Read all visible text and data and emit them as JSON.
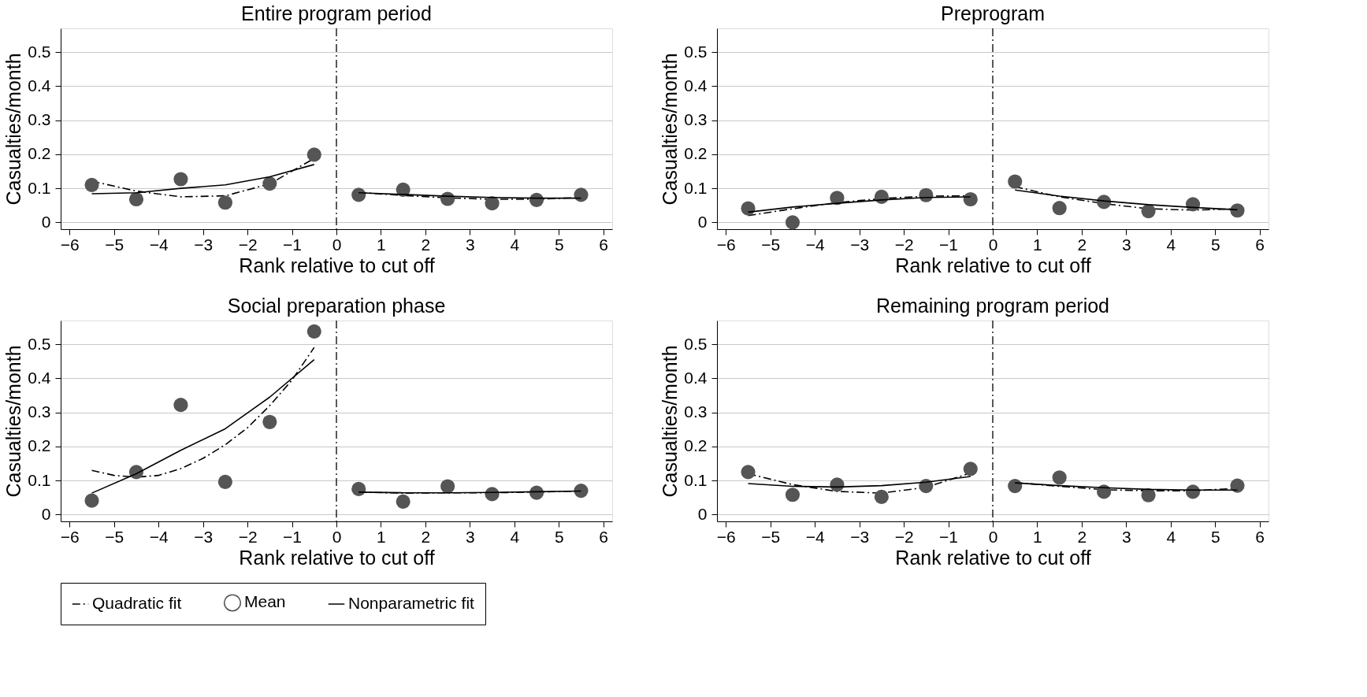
{
  "chart_data": [
    {
      "type": "scatter",
      "title": "Entire program period",
      "xlabel": "Rank relative to cut off",
      "ylabel": "Casualties/month",
      "xlim": [
        -6.2,
        6.2
      ],
      "ylim": [
        -0.02,
        0.57
      ],
      "xticks": [
        -6,
        -5,
        -4,
        -3,
        -2,
        -1,
        0,
        1,
        2,
        3,
        4,
        5,
        6
      ],
      "yticks": [
        0,
        0.1,
        0.2,
        0.3,
        0.4,
        0.5
      ],
      "grid": "y",
      "legend": "bottom",
      "ref_lines": [
        {
          "axis": "x",
          "value": 0,
          "line_style": "dashed",
          "color": "#000000"
        }
      ],
      "series": [
        {
          "type": "line",
          "name": "Quadratic fit",
          "color": "#000000",
          "line_style": "dashed",
          "marker": "none",
          "x": [
            -5.5,
            -4.5,
            -3.5,
            -2.5,
            -1.5,
            -0.5
          ],
          "values": [
            0.121,
            0.092,
            0.075,
            0.078,
            0.113,
            0.188
          ]
        },
        {
          "type": "line",
          "color": "#000000",
          "line_style": "dashed",
          "marker": "none",
          "x": [
            0.5,
            1.5,
            2.5,
            3.5,
            4.5,
            5.5
          ],
          "values": [
            0.088,
            0.079,
            0.072,
            0.068,
            0.068,
            0.073
          ]
        },
        {
          "type": "scatter",
          "name": "Mean",
          "color": "#555555",
          "marker": "circle",
          "x": [
            -5.5,
            -4.5,
            -3.5,
            -2.5,
            -1.5,
            -0.5,
            0.5,
            1.5,
            2.5,
            3.5,
            4.5,
            5.5
          ],
          "values": [
            0.11,
            0.068,
            0.127,
            0.058,
            0.114,
            0.199,
            0.081,
            0.096,
            0.069,
            0.056,
            0.066,
            0.081
          ]
        },
        {
          "type": "line",
          "name": "Nonparametric fit",
          "color": "#000000",
          "line_style": "solid",
          "marker": "none",
          "x": [
            -5.5,
            -4.5,
            -3.5,
            -2.5,
            -1.5,
            -0.5
          ],
          "values": [
            0.084,
            0.087,
            0.1,
            0.11,
            0.134,
            0.17
          ]
        },
        {
          "type": "line",
          "color": "#000000",
          "line_style": "solid",
          "marker": "none",
          "x": [
            0.5,
            1.5,
            2.5,
            3.5,
            4.5,
            5.5
          ],
          "values": [
            0.087,
            0.082,
            0.077,
            0.073,
            0.071,
            0.071
          ]
        }
      ]
    },
    {
      "type": "scatter",
      "title": "Preprogram",
      "xlabel": "Rank relative to cut off",
      "ylabel": "Casualties/month",
      "xlim": [
        -6.2,
        6.2
      ],
      "ylim": [
        -0.02,
        0.57
      ],
      "xticks": [
        -6,
        -5,
        -4,
        -3,
        -2,
        -1,
        0,
        1,
        2,
        3,
        4,
        5,
        6
      ],
      "yticks": [
        0,
        0.1,
        0.2,
        0.3,
        0.4,
        0.5
      ],
      "grid": "y",
      "ref_lines": [
        {
          "axis": "x",
          "value": 0,
          "line_style": "dashed",
          "color": "#000000"
        }
      ],
      "series": [
        {
          "type": "line",
          "color": "#000000",
          "line_style": "dashed",
          "marker": "none",
          "x": [
            -5.5,
            -4.5,
            -3.5,
            -2.5,
            -1.5,
            -0.5
          ],
          "values": [
            0.02,
            0.04,
            0.058,
            0.07,
            0.077,
            0.078
          ]
        },
        {
          "type": "line",
          "color": "#000000",
          "line_style": "dashed",
          "marker": "none",
          "x": [
            0.5,
            1.5,
            2.5,
            3.5,
            4.5,
            5.5
          ],
          "values": [
            0.105,
            0.075,
            0.055,
            0.04,
            0.036,
            0.04
          ]
        },
        {
          "type": "scatter",
          "color": "#555555",
          "marker": "circle",
          "x": [
            -5.5,
            -4.5,
            -3.5,
            -2.5,
            -1.5,
            -0.5,
            0.5,
            1.5,
            2.5,
            3.5,
            4.5,
            5.5
          ],
          "values": [
            0.041,
            0.0,
            0.072,
            0.075,
            0.08,
            0.068,
            0.12,
            0.042,
            0.06,
            0.033,
            0.053,
            0.035
          ]
        },
        {
          "type": "line",
          "color": "#000000",
          "line_style": "solid",
          "marker": "none",
          "x": [
            -5.5,
            -4.5,
            -3.5,
            -2.5,
            -1.5,
            -0.5
          ],
          "values": [
            0.03,
            0.045,
            0.056,
            0.066,
            0.073,
            0.075
          ]
        },
        {
          "type": "line",
          "color": "#000000",
          "line_style": "solid",
          "marker": "none",
          "x": [
            0.5,
            1.5,
            2.5,
            3.5,
            4.5,
            5.5
          ],
          "values": [
            0.095,
            0.077,
            0.063,
            0.052,
            0.044,
            0.037
          ]
        }
      ]
    },
    {
      "type": "scatter",
      "title": "Social preparation phase",
      "xlabel": "Rank relative to cut off",
      "ylabel": "Casualties/month",
      "xlim": [
        -6.2,
        6.2
      ],
      "ylim": [
        -0.02,
        0.57
      ],
      "xticks": [
        -6,
        -5,
        -4,
        -3,
        -2,
        -1,
        0,
        1,
        2,
        3,
        4,
        5,
        6
      ],
      "yticks": [
        0,
        0.1,
        0.2,
        0.3,
        0.4,
        0.5
      ],
      "grid": "y",
      "ref_lines": [
        {
          "axis": "x",
          "value": 0,
          "line_style": "dashed",
          "color": "#000000"
        }
      ],
      "series": [
        {
          "type": "line",
          "color": "#000000",
          "line_style": "dashed",
          "marker": "none",
          "x": [
            -5.5,
            -5,
            -4.5,
            -4,
            -3.5,
            -3,
            -2.5,
            -2,
            -1.5,
            -1,
            -0.5
          ],
          "values": [
            0.13,
            0.115,
            0.11,
            0.115,
            0.135,
            0.165,
            0.205,
            0.255,
            0.32,
            0.395,
            0.491
          ]
        },
        {
          "type": "line",
          "color": "#000000",
          "line_style": "dashed",
          "marker": "none",
          "x": [
            0.5,
            1.5,
            2.5,
            3.5,
            4.5,
            5.5
          ],
          "values": [
            0.066,
            0.063,
            0.064,
            0.064,
            0.066,
            0.069
          ]
        },
        {
          "type": "scatter",
          "color": "#555555",
          "marker": "circle",
          "x": [
            -5.5,
            -4.5,
            -3.5,
            -2.5,
            -1.5,
            -0.5,
            0.5,
            1.5,
            2.5,
            3.5,
            4.5,
            5.5
          ],
          "values": [
            0.041,
            0.125,
            0.322,
            0.096,
            0.272,
            0.538,
            0.075,
            0.038,
            0.083,
            0.06,
            0.064,
            0.07
          ]
        },
        {
          "type": "line",
          "color": "#000000",
          "line_style": "solid",
          "marker": "none",
          "x": [
            -5.5,
            -4.5,
            -3.5,
            -2.5,
            -1.5,
            -0.5
          ],
          "values": [
            0.063,
            0.12,
            0.189,
            0.252,
            0.345,
            0.455
          ]
        },
        {
          "type": "line",
          "color": "#000000",
          "line_style": "solid",
          "marker": "none",
          "x": [
            0.5,
            1.5,
            2.5,
            3.5,
            4.5,
            5.5
          ],
          "values": [
            0.066,
            0.064,
            0.064,
            0.065,
            0.067,
            0.069
          ]
        }
      ]
    },
    {
      "type": "scatter",
      "title": "Remaining program period",
      "xlabel": "Rank relative to cut off",
      "ylabel": "Casualties/month",
      "xlim": [
        -6.2,
        6.2
      ],
      "ylim": [
        -0.02,
        0.57
      ],
      "xticks": [
        -6,
        -5,
        -4,
        -3,
        -2,
        -1,
        0,
        1,
        2,
        3,
        4,
        5,
        6
      ],
      "yticks": [
        0,
        0.1,
        0.2,
        0.3,
        0.4,
        0.5
      ],
      "grid": "y",
      "ref_lines": [
        {
          "axis": "x",
          "value": 0,
          "line_style": "dashed",
          "color": "#000000"
        }
      ],
      "series": [
        {
          "type": "line",
          "color": "#000000",
          "line_style": "dashed",
          "marker": "none",
          "x": [
            -5.5,
            -4.5,
            -3.5,
            -2.5,
            -1.5,
            -0.5
          ],
          "values": [
            0.12,
            0.088,
            0.068,
            0.063,
            0.08,
            0.122
          ]
        },
        {
          "type": "line",
          "color": "#000000",
          "line_style": "dashed",
          "marker": "none",
          "x": [
            0.5,
            1.5,
            2.5,
            3.5,
            4.5,
            5.5
          ],
          "values": [
            0.094,
            0.083,
            0.073,
            0.07,
            0.07,
            0.077
          ]
        },
        {
          "type": "scatter",
          "color": "#555555",
          "marker": "circle",
          "x": [
            -5.5,
            -4.5,
            -3.5,
            -2.5,
            -1.5,
            -0.5,
            0.5,
            1.5,
            2.5,
            3.5,
            4.5,
            5.5
          ],
          "values": [
            0.125,
            0.058,
            0.088,
            0.052,
            0.084,
            0.134,
            0.084,
            0.109,
            0.067,
            0.057,
            0.067,
            0.085
          ]
        },
        {
          "type": "line",
          "color": "#000000",
          "line_style": "solid",
          "marker": "none",
          "x": [
            -5.5,
            -4.5,
            -3.5,
            -2.5,
            -1.5,
            -0.5
          ],
          "values": [
            0.091,
            0.083,
            0.081,
            0.085,
            0.095,
            0.112
          ]
        },
        {
          "type": "line",
          "color": "#000000",
          "line_style": "solid",
          "marker": "none",
          "x": [
            0.5,
            1.5,
            2.5,
            3.5,
            4.5,
            5.5
          ],
          "values": [
            0.093,
            0.085,
            0.079,
            0.074,
            0.072,
            0.072
          ]
        }
      ]
    }
  ]
}
